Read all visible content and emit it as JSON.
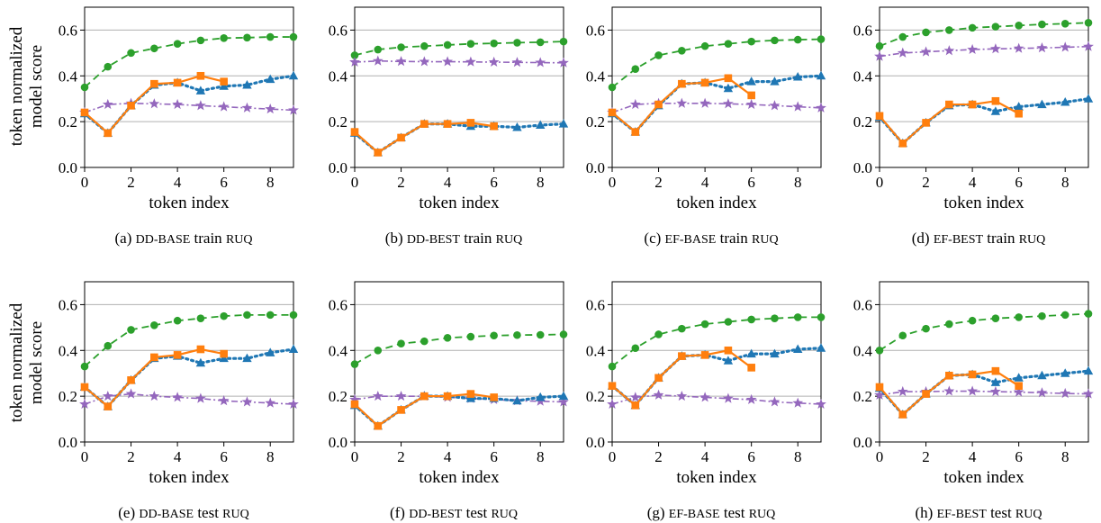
{
  "figure": {
    "ylabel_line1": "token normalized",
    "ylabel_line2": "model score",
    "colors": {
      "green": "#2ca02c",
      "blue": "#1f77b4",
      "orange": "#ff7f0e",
      "purple": "#9467bd",
      "grid": "#b0b0b0"
    }
  },
  "chart_data": [
    {
      "type": "line",
      "caption": {
        "label": "(a)",
        "sc1": "DD-BASE",
        "mid": " train ",
        "sc2": "RUQ"
      },
      "xlabel": "token index",
      "xlim": [
        0,
        9
      ],
      "ylim": [
        0,
        0.7
      ],
      "xticks": [
        0,
        2,
        4,
        6,
        8
      ],
      "yticks": [
        0.0,
        0.2,
        0.4,
        0.6
      ],
      "series": [
        {
          "style": "green-dashed-circle",
          "x": [
            0,
            1,
            2,
            3,
            4,
            5,
            6,
            7,
            8,
            9
          ],
          "y": [
            0.35,
            0.44,
            0.5,
            0.52,
            0.54,
            0.555,
            0.565,
            0.567,
            0.57,
            0.57
          ]
        },
        {
          "style": "purple-star",
          "x": [
            0,
            1,
            2,
            3,
            4,
            5,
            6,
            7,
            8,
            9
          ],
          "y": [
            0.24,
            0.275,
            0.28,
            0.278,
            0.275,
            0.27,
            0.265,
            0.26,
            0.255,
            0.25
          ]
        },
        {
          "style": "blue-dotted-triangle",
          "x": [
            0,
            1,
            2,
            3,
            4,
            5,
            6,
            7,
            8,
            9
          ],
          "y": [
            0.235,
            0.15,
            0.27,
            0.36,
            0.37,
            0.335,
            0.355,
            0.36,
            0.385,
            0.4
          ]
        },
        {
          "style": "orange-square",
          "x": [
            0,
            1,
            2,
            3,
            4,
            5,
            6
          ],
          "y": [
            0.24,
            0.15,
            0.27,
            0.365,
            0.37,
            0.4,
            0.375
          ]
        }
      ]
    },
    {
      "type": "line",
      "caption": {
        "label": "(b)",
        "sc1": "DD-BEST",
        "mid": " train ",
        "sc2": "RUQ"
      },
      "xlabel": "token index",
      "xlim": [
        0,
        9
      ],
      "ylim": [
        0,
        0.7
      ],
      "xticks": [
        0,
        2,
        4,
        6,
        8
      ],
      "yticks": [
        0.0,
        0.2,
        0.4,
        0.6
      ],
      "series": [
        {
          "style": "green-dashed-circle",
          "x": [
            0,
            1,
            2,
            3,
            4,
            5,
            6,
            7,
            8,
            9
          ],
          "y": [
            0.49,
            0.515,
            0.525,
            0.53,
            0.535,
            0.54,
            0.542,
            0.545,
            0.547,
            0.55
          ]
        },
        {
          "style": "purple-star",
          "x": [
            0,
            1,
            2,
            3,
            4,
            5,
            6,
            7,
            8,
            9
          ],
          "y": [
            0.46,
            0.465,
            0.463,
            0.462,
            0.462,
            0.461,
            0.46,
            0.459,
            0.458,
            0.457
          ]
        },
        {
          "style": "blue-dotted-triangle",
          "x": [
            0,
            1,
            2,
            3,
            4,
            5,
            6,
            7,
            8,
            9
          ],
          "y": [
            0.15,
            0.065,
            0.13,
            0.19,
            0.19,
            0.18,
            0.18,
            0.175,
            0.185,
            0.19
          ]
        },
        {
          "style": "orange-square",
          "x": [
            0,
            1,
            2,
            3,
            4,
            5,
            6
          ],
          "y": [
            0.155,
            0.065,
            0.13,
            0.19,
            0.19,
            0.195,
            0.18
          ]
        }
      ]
    },
    {
      "type": "line",
      "caption": {
        "label": "(c)",
        "sc1": "EF-BASE",
        "mid": " train ",
        "sc2": "RUQ"
      },
      "xlabel": "token index",
      "xlim": [
        0,
        9
      ],
      "ylim": [
        0,
        0.7
      ],
      "xticks": [
        0,
        2,
        4,
        6,
        8
      ],
      "yticks": [
        0.0,
        0.2,
        0.4,
        0.6
      ],
      "series": [
        {
          "style": "green-dashed-circle",
          "x": [
            0,
            1,
            2,
            3,
            4,
            5,
            6,
            7,
            8,
            9
          ],
          "y": [
            0.35,
            0.43,
            0.49,
            0.51,
            0.53,
            0.54,
            0.55,
            0.555,
            0.558,
            0.56
          ]
        },
        {
          "style": "purple-star",
          "x": [
            0,
            1,
            2,
            3,
            4,
            5,
            6,
            7,
            8,
            9
          ],
          "y": [
            0.24,
            0.275,
            0.28,
            0.28,
            0.28,
            0.278,
            0.275,
            0.27,
            0.265,
            0.26
          ]
        },
        {
          "style": "blue-dotted-triangle",
          "x": [
            0,
            1,
            2,
            3,
            4,
            5,
            6,
            7,
            8,
            9
          ],
          "y": [
            0.235,
            0.155,
            0.27,
            0.365,
            0.37,
            0.345,
            0.375,
            0.375,
            0.395,
            0.4
          ]
        },
        {
          "style": "orange-square",
          "x": [
            0,
            1,
            2,
            3,
            4,
            5,
            6
          ],
          "y": [
            0.24,
            0.155,
            0.275,
            0.365,
            0.37,
            0.39,
            0.315
          ]
        }
      ]
    },
    {
      "type": "line",
      "caption": {
        "label": "(d)",
        "sc1": "EF-BEST",
        "mid": " train ",
        "sc2": "RUQ"
      },
      "xlabel": "token index",
      "xlim": [
        0,
        9
      ],
      "ylim": [
        0,
        0.7
      ],
      "xticks": [
        0,
        2,
        4,
        6,
        8
      ],
      "yticks": [
        0.0,
        0.2,
        0.4,
        0.6
      ],
      "series": [
        {
          "style": "green-dashed-circle",
          "x": [
            0,
            1,
            2,
            3,
            4,
            5,
            6,
            7,
            8,
            9
          ],
          "y": [
            0.53,
            0.57,
            0.59,
            0.6,
            0.61,
            0.615,
            0.62,
            0.625,
            0.628,
            0.632
          ]
        },
        {
          "style": "purple-star",
          "x": [
            0,
            1,
            2,
            3,
            4,
            5,
            6,
            7,
            8,
            9
          ],
          "y": [
            0.485,
            0.5,
            0.505,
            0.51,
            0.515,
            0.518,
            0.52,
            0.522,
            0.525,
            0.528
          ]
        },
        {
          "style": "blue-dotted-triangle",
          "x": [
            0,
            1,
            2,
            3,
            4,
            5,
            6,
            7,
            8,
            9
          ],
          "y": [
            0.22,
            0.105,
            0.195,
            0.27,
            0.275,
            0.245,
            0.265,
            0.275,
            0.285,
            0.3
          ]
        },
        {
          "style": "orange-square",
          "x": [
            0,
            1,
            2,
            3,
            4,
            5,
            6
          ],
          "y": [
            0.225,
            0.105,
            0.195,
            0.275,
            0.275,
            0.29,
            0.235
          ]
        }
      ]
    },
    {
      "type": "line",
      "caption": {
        "label": "(e)",
        "sc1": "DD-BASE",
        "mid": " test ",
        "sc2": "RUQ"
      },
      "xlabel": "token index",
      "xlim": [
        0,
        9
      ],
      "ylim": [
        0,
        0.7
      ],
      "xticks": [
        0,
        2,
        4,
        6,
        8
      ],
      "yticks": [
        0.0,
        0.2,
        0.4,
        0.6
      ],
      "series": [
        {
          "style": "green-dashed-circle",
          "x": [
            0,
            1,
            2,
            3,
            4,
            5,
            6,
            7,
            8,
            9
          ],
          "y": [
            0.33,
            0.42,
            0.49,
            0.51,
            0.53,
            0.54,
            0.55,
            0.555,
            0.555,
            0.555
          ]
        },
        {
          "style": "purple-star",
          "x": [
            0,
            1,
            2,
            3,
            4,
            5,
            6,
            7,
            8,
            9
          ],
          "y": [
            0.165,
            0.2,
            0.21,
            0.2,
            0.195,
            0.19,
            0.18,
            0.175,
            0.17,
            0.165
          ]
        },
        {
          "style": "blue-dotted-triangle",
          "x": [
            0,
            1,
            2,
            3,
            4,
            5,
            6,
            7,
            8,
            9
          ],
          "y": [
            0.24,
            0.155,
            0.27,
            0.365,
            0.375,
            0.345,
            0.365,
            0.365,
            0.39,
            0.405
          ]
        },
        {
          "style": "orange-square",
          "x": [
            0,
            1,
            2,
            3,
            4,
            5,
            6
          ],
          "y": [
            0.24,
            0.155,
            0.27,
            0.37,
            0.38,
            0.405,
            0.385
          ]
        }
      ]
    },
    {
      "type": "line",
      "caption": {
        "label": "(f)",
        "sc1": "DD-BEST",
        "mid": " test ",
        "sc2": "RUQ"
      },
      "xlabel": "token index",
      "xlim": [
        0,
        9
      ],
      "ylim": [
        0,
        0.7
      ],
      "xticks": [
        0,
        2,
        4,
        6,
        8
      ],
      "yticks": [
        0.0,
        0.2,
        0.4,
        0.6
      ],
      "series": [
        {
          "style": "green-dashed-circle",
          "x": [
            0,
            1,
            2,
            3,
            4,
            5,
            6,
            7,
            8,
            9
          ],
          "y": [
            0.34,
            0.4,
            0.43,
            0.44,
            0.455,
            0.46,
            0.465,
            0.467,
            0.468,
            0.47
          ]
        },
        {
          "style": "purple-star",
          "x": [
            0,
            1,
            2,
            3,
            4,
            5,
            6,
            7,
            8,
            9
          ],
          "y": [
            0.185,
            0.2,
            0.2,
            0.2,
            0.195,
            0.19,
            0.185,
            0.18,
            0.178,
            0.175
          ]
        },
        {
          "style": "blue-dotted-triangle",
          "x": [
            0,
            1,
            2,
            3,
            4,
            5,
            6,
            7,
            8,
            9
          ],
          "y": [
            0.16,
            0.07,
            0.14,
            0.2,
            0.2,
            0.19,
            0.19,
            0.18,
            0.195,
            0.2
          ]
        },
        {
          "style": "orange-square",
          "x": [
            0,
            1,
            2,
            3,
            4,
            5,
            6
          ],
          "y": [
            0.165,
            0.07,
            0.14,
            0.2,
            0.2,
            0.21,
            0.195
          ]
        }
      ]
    },
    {
      "type": "line",
      "caption": {
        "label": "(g)",
        "sc1": "EF-BASE",
        "mid": " test ",
        "sc2": "RUQ"
      },
      "xlabel": "token index",
      "xlim": [
        0,
        9
      ],
      "ylim": [
        0,
        0.7
      ],
      "xticks": [
        0,
        2,
        4,
        6,
        8
      ],
      "yticks": [
        0.0,
        0.2,
        0.4,
        0.6
      ],
      "series": [
        {
          "style": "green-dashed-circle",
          "x": [
            0,
            1,
            2,
            3,
            4,
            5,
            6,
            7,
            8,
            9
          ],
          "y": [
            0.33,
            0.41,
            0.47,
            0.495,
            0.515,
            0.525,
            0.535,
            0.54,
            0.545,
            0.545
          ]
        },
        {
          "style": "purple-star",
          "x": [
            0,
            1,
            2,
            3,
            4,
            5,
            6,
            7,
            8,
            9
          ],
          "y": [
            0.165,
            0.195,
            0.205,
            0.2,
            0.195,
            0.19,
            0.185,
            0.175,
            0.17,
            0.165
          ]
        },
        {
          "style": "blue-dotted-triangle",
          "x": [
            0,
            1,
            2,
            3,
            4,
            5,
            6,
            7,
            8,
            9
          ],
          "y": [
            0.245,
            0.16,
            0.28,
            0.375,
            0.38,
            0.355,
            0.385,
            0.385,
            0.405,
            0.41
          ]
        },
        {
          "style": "orange-square",
          "x": [
            0,
            1,
            2,
            3,
            4,
            5,
            6
          ],
          "y": [
            0.245,
            0.16,
            0.28,
            0.375,
            0.38,
            0.4,
            0.325
          ]
        }
      ]
    },
    {
      "type": "line",
      "caption": {
        "label": "(h)",
        "sc1": "EF-BEST",
        "mid": " test ",
        "sc2": "RUQ"
      },
      "xlabel": "token index",
      "xlim": [
        0,
        9
      ],
      "ylim": [
        0,
        0.7
      ],
      "xticks": [
        0,
        2,
        4,
        6,
        8
      ],
      "yticks": [
        0.0,
        0.2,
        0.4,
        0.6
      ],
      "series": [
        {
          "style": "green-dashed-circle",
          "x": [
            0,
            1,
            2,
            3,
            4,
            5,
            6,
            7,
            8,
            9
          ],
          "y": [
            0.4,
            0.465,
            0.495,
            0.515,
            0.53,
            0.54,
            0.545,
            0.55,
            0.555,
            0.56
          ]
        },
        {
          "style": "purple-star",
          "x": [
            0,
            1,
            2,
            3,
            4,
            5,
            6,
            7,
            8,
            9
          ],
          "y": [
            0.205,
            0.22,
            0.22,
            0.222,
            0.222,
            0.22,
            0.218,
            0.215,
            0.212,
            0.21
          ]
        },
        {
          "style": "blue-dotted-triangle",
          "x": [
            0,
            1,
            2,
            3,
            4,
            5,
            6,
            7,
            8,
            9
          ],
          "y": [
            0.235,
            0.12,
            0.21,
            0.29,
            0.295,
            0.26,
            0.28,
            0.29,
            0.3,
            0.31
          ]
        },
        {
          "style": "orange-square",
          "x": [
            0,
            1,
            2,
            3,
            4,
            5,
            6
          ],
          "y": [
            0.24,
            0.12,
            0.21,
            0.29,
            0.295,
            0.31,
            0.245
          ]
        }
      ]
    }
  ]
}
